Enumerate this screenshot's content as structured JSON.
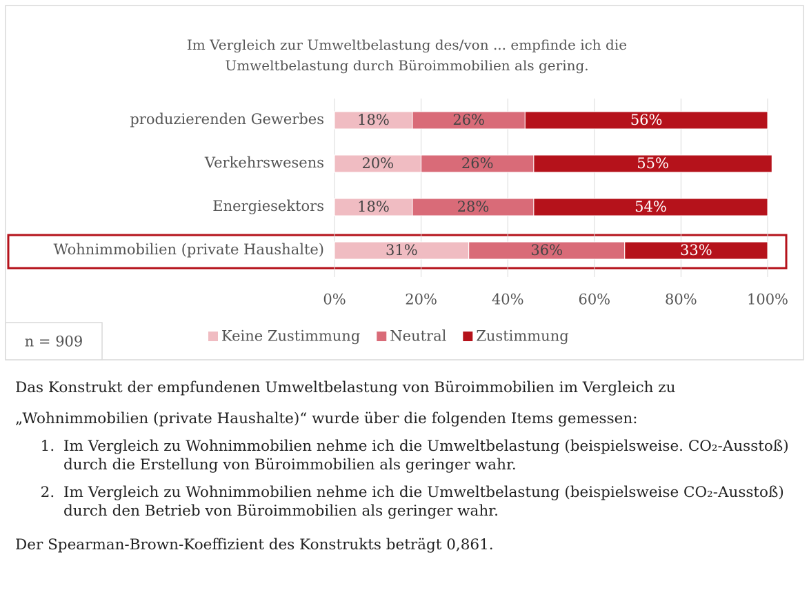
{
  "chart_data": {
    "type": "stacked-bar-horizontal",
    "title": "Im Vergleich zur Umweltbelastung des/von ... empfinde ich die Umweltbelastung durch Büroimmobilien als gering.",
    "categories": [
      "produzierenden Gewerbes",
      "Verkehrswesens",
      "Energiesektors",
      "Wohnimmobilien (private Haushalte)"
    ],
    "series": [
      {
        "name": "Keine Zustimmung",
        "color": "#f0bcc2",
        "values": [
          18,
          20,
          18,
          31
        ],
        "value_labels": [
          "18%",
          "20%",
          "18%",
          "31%"
        ]
      },
      {
        "name": "Neutral",
        "color": "#d96b78",
        "values": [
          26,
          26,
          28,
          36
        ],
        "value_labels": [
          "26%",
          "26%",
          "28%",
          "36%"
        ]
      },
      {
        "name": "Zustimmung",
        "color": "#b5121b",
        "values": [
          56,
          55,
          54,
          33
        ],
        "value_labels": [
          "56%",
          "55%",
          "54%",
          "33%"
        ]
      }
    ],
    "xlim": [
      0,
      100
    ],
    "xticks": [
      {
        "value": 0,
        "label": "0%"
      },
      {
        "value": 20,
        "label": "20%"
      },
      {
        "value": 40,
        "label": "40%"
      },
      {
        "value": 60,
        "label": "60%"
      },
      {
        "value": 80,
        "label": "80%"
      },
      {
        "value": 100,
        "label": "100%"
      }
    ],
    "grid": true,
    "legend": "bottom",
    "note": "n = 909"
  },
  "body": {
    "paragraph": "Das Konstrukt der empfundenen Umweltbelastung von Büroimmobilien im Vergleich zu „Wohnimmobilien (private Haushalte)“ wurde über die folgenden Items gemessen:",
    "items": [
      "Im Vergleich zu Wohnimmobilien nehme ich die Umweltbelastung (beispiels­weise. CO₂-Ausstoß) durch die Erstellung von Büroimmobilien als geringer wahr.",
      "Im Vergleich zu Wohnimmobilien nehme ich die Umweltbelastung (beispiels­weise CO₂-Ausstoß) durch den Betrieb von Büroimmobilien als geringer wahr."
    ],
    "conclusion": "Der Spearman-Brown-Koeffizient des Konstrukts beträgt 0,861."
  }
}
